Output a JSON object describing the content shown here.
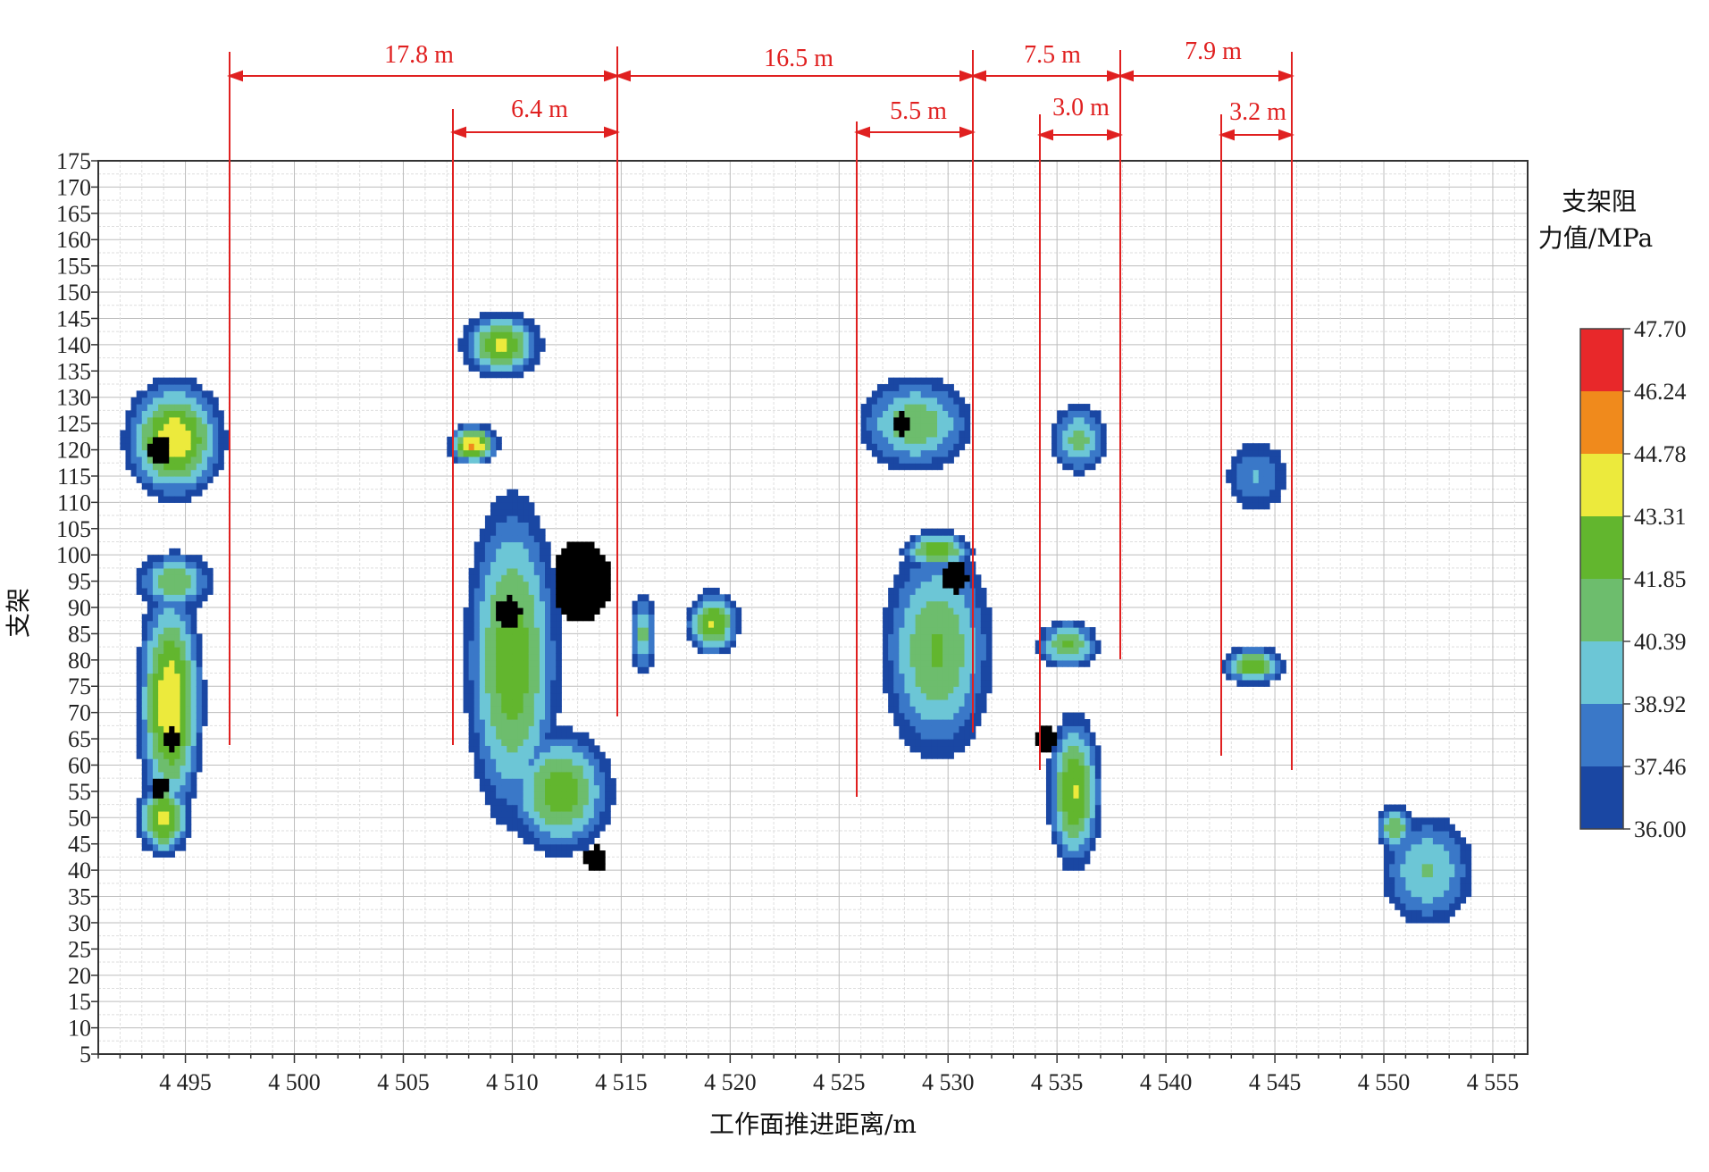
{
  "chart_data": {
    "type": "contour",
    "xlabel": "工作面推进距离/m",
    "ylabel": "支架",
    "colorbar_title_line1": "支架阻",
    "colorbar_title_line2": "力值/MPa",
    "xlim": [
      4491,
      4556.6
    ],
    "ylim": [
      5,
      175
    ],
    "x_ticks": [
      4495,
      4500,
      4505,
      4510,
      4515,
      4520,
      4525,
      4530,
      4535,
      4540,
      4545,
      4550,
      4555
    ],
    "x_tick_labels": [
      "4 495",
      "4 500",
      "4 505",
      "4 510",
      "4 515",
      "4 520",
      "4 525",
      "4 530",
      "4 535",
      "4 540",
      "4 545",
      "4 550",
      "4 555"
    ],
    "y_ticks": [
      5,
      10,
      15,
      20,
      25,
      30,
      35,
      40,
      45,
      50,
      55,
      60,
      65,
      70,
      75,
      80,
      85,
      90,
      95,
      100,
      105,
      110,
      115,
      120,
      125,
      130,
      135,
      140,
      145,
      150,
      155,
      160,
      165,
      170,
      175
    ],
    "grid": true,
    "color_levels": [
      36.0,
      37.46,
      38.92,
      40.39,
      41.85,
      43.31,
      44.78,
      46.24,
      47.7
    ],
    "color_level_labels": [
      "36.00",
      "37.46",
      "38.92",
      "40.39",
      "41.85",
      "43.31",
      "44.78",
      "46.24",
      "47.70"
    ],
    "level_colors": [
      "#1a47a3",
      "#3a78c8",
      "#6cc6d6",
      "#6dbd6d",
      "#62b62e",
      "#ecea3c",
      "#f08a1c",
      "#e8282a"
    ],
    "contour_line_color": "#555555",
    "below_min_color": "#000000",
    "hotspots": [
      {
        "x": 4494.5,
        "y": 122,
        "sx": 1.8,
        "sy": 9,
        "v": 44.5
      },
      {
        "x": 4493.8,
        "y": 120,
        "sx": 0.5,
        "sy": 3,
        "v": 35.8
      },
      {
        "x": 4494.5,
        "y": 95,
        "sx": 1.6,
        "sy": 5,
        "v": 41.5
      },
      {
        "x": 4494.3,
        "y": 72,
        "sx": 1.2,
        "sy": 18,
        "v": 44.6
      },
      {
        "x": 4494.0,
        "y": 50,
        "sx": 1.0,
        "sy": 6,
        "v": 44.0
      },
      {
        "x": 4494.4,
        "y": 65,
        "sx": 0.4,
        "sy": 2,
        "v": 35.8
      },
      {
        "x": 4493.8,
        "y": 56,
        "sx": 0.4,
        "sy": 2,
        "v": 35.8
      },
      {
        "x": 4509.5,
        "y": 140,
        "sx": 1.5,
        "sy": 5,
        "v": 43.5
      },
      {
        "x": 4508.2,
        "y": 121,
        "sx": 0.9,
        "sy": 3,
        "v": 45.0
      },
      {
        "x": 4510.0,
        "y": 80,
        "sx": 1.8,
        "sy": 26,
        "v": 43.0
      },
      {
        "x": 4512.2,
        "y": 55,
        "sx": 2.0,
        "sy": 10,
        "v": 42.8
      },
      {
        "x": 4513.2,
        "y": 95,
        "sx": 1.3,
        "sy": 8,
        "v": 35.9
      },
      {
        "x": 4509.8,
        "y": 89,
        "sx": 0.6,
        "sy": 3,
        "v": 35.8
      },
      {
        "x": 4513.8,
        "y": 42,
        "sx": 0.5,
        "sy": 2.5,
        "v": 35.8
      },
      {
        "x": 4516.0,
        "y": 85,
        "sx": 0.5,
        "sy": 7,
        "v": 41.0
      },
      {
        "x": 4519.2,
        "y": 87,
        "sx": 1.0,
        "sy": 5,
        "v": 43.5
      },
      {
        "x": 4528.5,
        "y": 125,
        "sx": 2.3,
        "sy": 8,
        "v": 41.5
      },
      {
        "x": 4527.8,
        "y": 125,
        "sx": 0.4,
        "sy": 2,
        "v": 35.8
      },
      {
        "x": 4529.5,
        "y": 82,
        "sx": 2.2,
        "sy": 18,
        "v": 42.0
      },
      {
        "x": 4530.3,
        "y": 96,
        "sx": 0.6,
        "sy": 3,
        "v": 35.7
      },
      {
        "x": 4529.5,
        "y": 101,
        "sx": 1.3,
        "sy": 3,
        "v": 43.4
      },
      {
        "x": 4536.0,
        "y": 122,
        "sx": 1.2,
        "sy": 6,
        "v": 41.0
      },
      {
        "x": 4535.8,
        "y": 55,
        "sx": 1.0,
        "sy": 12,
        "v": 43.5
      },
      {
        "x": 4534.5,
        "y": 65,
        "sx": 0.4,
        "sy": 2,
        "v": 35.8
      },
      {
        "x": 4535.5,
        "y": 83,
        "sx": 1.2,
        "sy": 4,
        "v": 42.2
      },
      {
        "x": 4544.2,
        "y": 115,
        "sx": 1.5,
        "sy": 7,
        "v": 39.0
      },
      {
        "x": 4544.0,
        "y": 79,
        "sx": 1.2,
        "sy": 3,
        "v": 43.0
      },
      {
        "x": 4552.0,
        "y": 40,
        "sx": 2.0,
        "sy": 10,
        "v": 40.5
      },
      {
        "x": 4550.5,
        "y": 48,
        "sx": 0.7,
        "sy": 4,
        "v": 42.0
      }
    ],
    "annotations": {
      "top_labels": [
        "17.8 m",
        "16.5 m",
        "7.5 m",
        "7.9 m"
      ],
      "sub_labels": [
        "6.4 m",
        "5.5 m",
        "3.0 m",
        "3.2 m"
      ]
    }
  }
}
